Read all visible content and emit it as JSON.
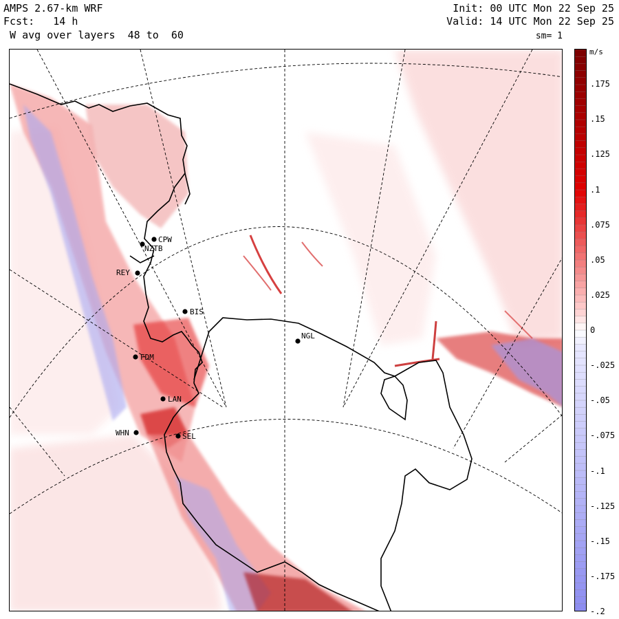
{
  "header": {
    "model": "AMPS 2.67-km WRF",
    "forecast": "Fcst:   14 h",
    "field": " W avg over layers  48 to  60",
    "init": "Init: 00 UTC Mon 22 Sep 25",
    "valid": "Valid: 14 UTC Mon 22 Sep 25",
    "smoothing": "sm= 1"
  },
  "colorbar": {
    "unit": "m/s",
    "labels": [
      ".175",
      ".15",
      ".125",
      ".1",
      ".075",
      ".05",
      ".025",
      "0",
      "-.025",
      "-.05",
      "-.075",
      "-.1",
      "-.125",
      "-.15",
      "-.175",
      "-.2"
    ],
    "min": -0.2,
    "max": 0.2,
    "colors": {
      "positive_max": "#7a0000",
      "positive_mid": "#e00000",
      "positive_low": "#ffd5d5",
      "zero": "#ffffff",
      "negative_low": "#e8e8ff",
      "negative_max": "#8c8cf0"
    }
  },
  "stations": [
    {
      "code": "CPW"
    },
    {
      "code": "NZTB"
    },
    {
      "code": "REY"
    },
    {
      "code": "BIS"
    },
    {
      "code": "NGL"
    },
    {
      "code": "FDM"
    },
    {
      "code": "LAN"
    },
    {
      "code": "WHN"
    },
    {
      "code": "SEL"
    }
  ],
  "colors": {
    "coastline": "#000000",
    "graticule": "#000000",
    "frame": "#000000"
  }
}
